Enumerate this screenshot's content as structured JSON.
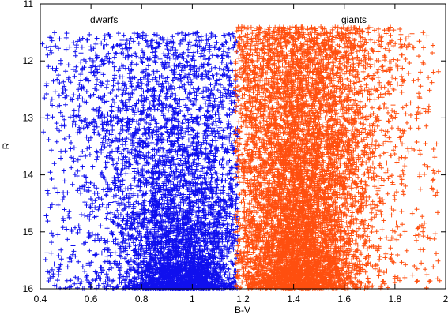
{
  "chart_data": {
    "type": "scatter",
    "xlabel": "B-V",
    "ylabel": "R",
    "xlim": [
      0.4,
      2.0
    ],
    "ylim": [
      11,
      16
    ],
    "y_inverted": true,
    "grid": false,
    "legend": "none",
    "xticks": [
      "0.4",
      "0.6",
      "0.8",
      "1",
      "1.2",
      "1.4",
      "1.6",
      "1.8",
      "2"
    ],
    "yticks": [
      "11",
      "12",
      "13",
      "14",
      "15",
      "16"
    ],
    "series": [
      {
        "name": "dwarfs",
        "color": "#1010ee",
        "marker": "plus",
        "x_range": [
          0.4,
          1.18
        ],
        "y_range": [
          11.5,
          16.0
        ],
        "approx_points": 5000,
        "density_peak": {
          "x": 0.95,
          "y": 15.3
        }
      },
      {
        "name": "giants",
        "color": "#ff4f0f",
        "marker": "plus",
        "x_range": [
          1.17,
          1.98
        ],
        "y_range": [
          11.4,
          16.0
        ],
        "approx_points": 7500,
        "density_peak": {
          "x": 1.42,
          "y": 15.0
        }
      }
    ]
  }
}
